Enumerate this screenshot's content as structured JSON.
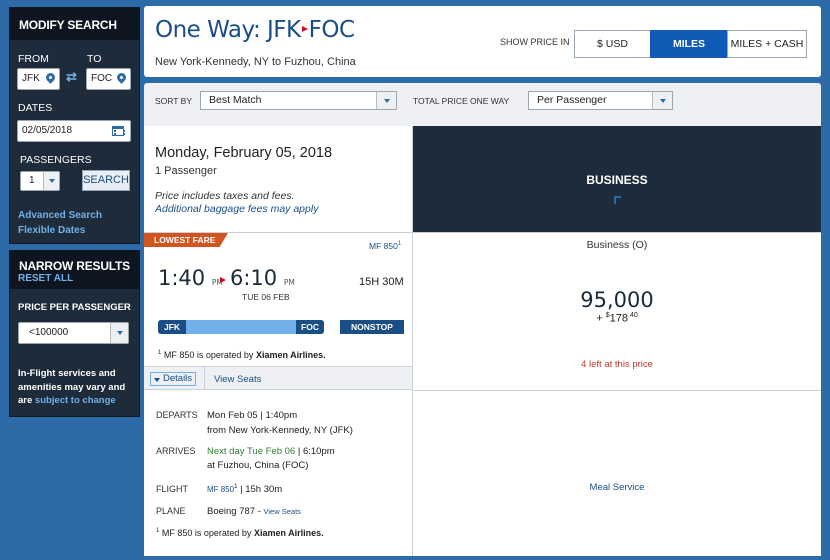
{
  "sidebar": {
    "modify": {
      "title": "MODIFY SEARCH",
      "from_label": "FROM",
      "to_label": "TO",
      "from_value": "JFK",
      "to_value": "FOC",
      "dates_label": "DATES",
      "date_value": "02/05/2018",
      "passengers_label": "PASSENGERS",
      "passengers_value": "1",
      "search_button": "SEARCH",
      "advanced_search": "Advanced Search",
      "flexible_dates": "Flexible Dates"
    },
    "narrow": {
      "title": "NARROW RESULTS",
      "reset": "RESET ALL",
      "price_label": "PRICE PER PASSENGER",
      "price_value": "<100000",
      "notice": "In-Flight services and amenities may vary and are",
      "notice_link": "subject to change"
    }
  },
  "header": {
    "title_prefix": "One Way: JFK",
    "title_dest": "FOC",
    "subtitle": "New York-Kennedy, NY to Fuzhou, China",
    "show_price_label": "SHOW PRICE IN",
    "price_modes": [
      "$ USD",
      "MILES",
      "MILES + CASH"
    ],
    "active_mode": "MILES"
  },
  "sortbar": {
    "sort_label": "SORT BY",
    "sort_value": "Best Match",
    "total_label": "TOTAL PRICE ONE WAY",
    "total_value": "Per Passenger"
  },
  "results": {
    "date": "Monday, February 05, 2018",
    "passengers": "1 Passenger",
    "price_note": "Price includes taxes and fees.",
    "baggage_link": "Additional baggage fees may apply",
    "cabin_header": "BUSINESS",
    "flight": {
      "badge": "LOWEST FARE",
      "flight_number": "MF 850",
      "footnote_mark": "1",
      "depart_time": "1:40",
      "depart_ampm": "PM",
      "arrive_time": "6:10",
      "arrive_ampm": "PM",
      "arrive_date": "TUE 06 FEB",
      "duration": "15H 30M",
      "origin": "JFK",
      "destination": "FOC",
      "stops": "NONSTOP",
      "operated_prefix": "MF 850 is operated by",
      "operated_airline": "Xiamen Airlines.",
      "details_tab": "Details",
      "view_seats_tab": "View Seats"
    },
    "fare": {
      "cabin": "Business (O)",
      "miles": "95,000",
      "plus": "+",
      "currency": "$",
      "cash_whole": "178",
      "cash_cents": ".40",
      "seats_left": "4 left at this price"
    },
    "details": {
      "departs_label": "DEPARTS",
      "departs_value": "Mon Feb 05 | 1:40pm",
      "departs_from": "from New York-Kennedy, NY  (JFK)",
      "arrives_label": "ARRIVES",
      "arrives_nextday": "Next day Tue Feb 06",
      "arrives_time": " | 6:10pm",
      "arrives_at": "at Fuzhou, China  (FOC)",
      "flight_label": "FLIGHT",
      "flight_value": "MF 850",
      "flight_duration": "| 15h 30m",
      "plane_label": "PLANE",
      "plane_value": "Boeing 787 -",
      "plane_link": "View Seats",
      "operated_prefix": "MF 850 is operated by",
      "operated_airline": "Xiamen Airlines.",
      "meal_service": "Meal Service"
    }
  },
  "colors": {
    "page_bg": "#2d6aa8",
    "sidebar_bg": "#1e2b3a",
    "accent": "#0f5bb6",
    "badge": "#d2541f",
    "alert": "#c0392b"
  }
}
